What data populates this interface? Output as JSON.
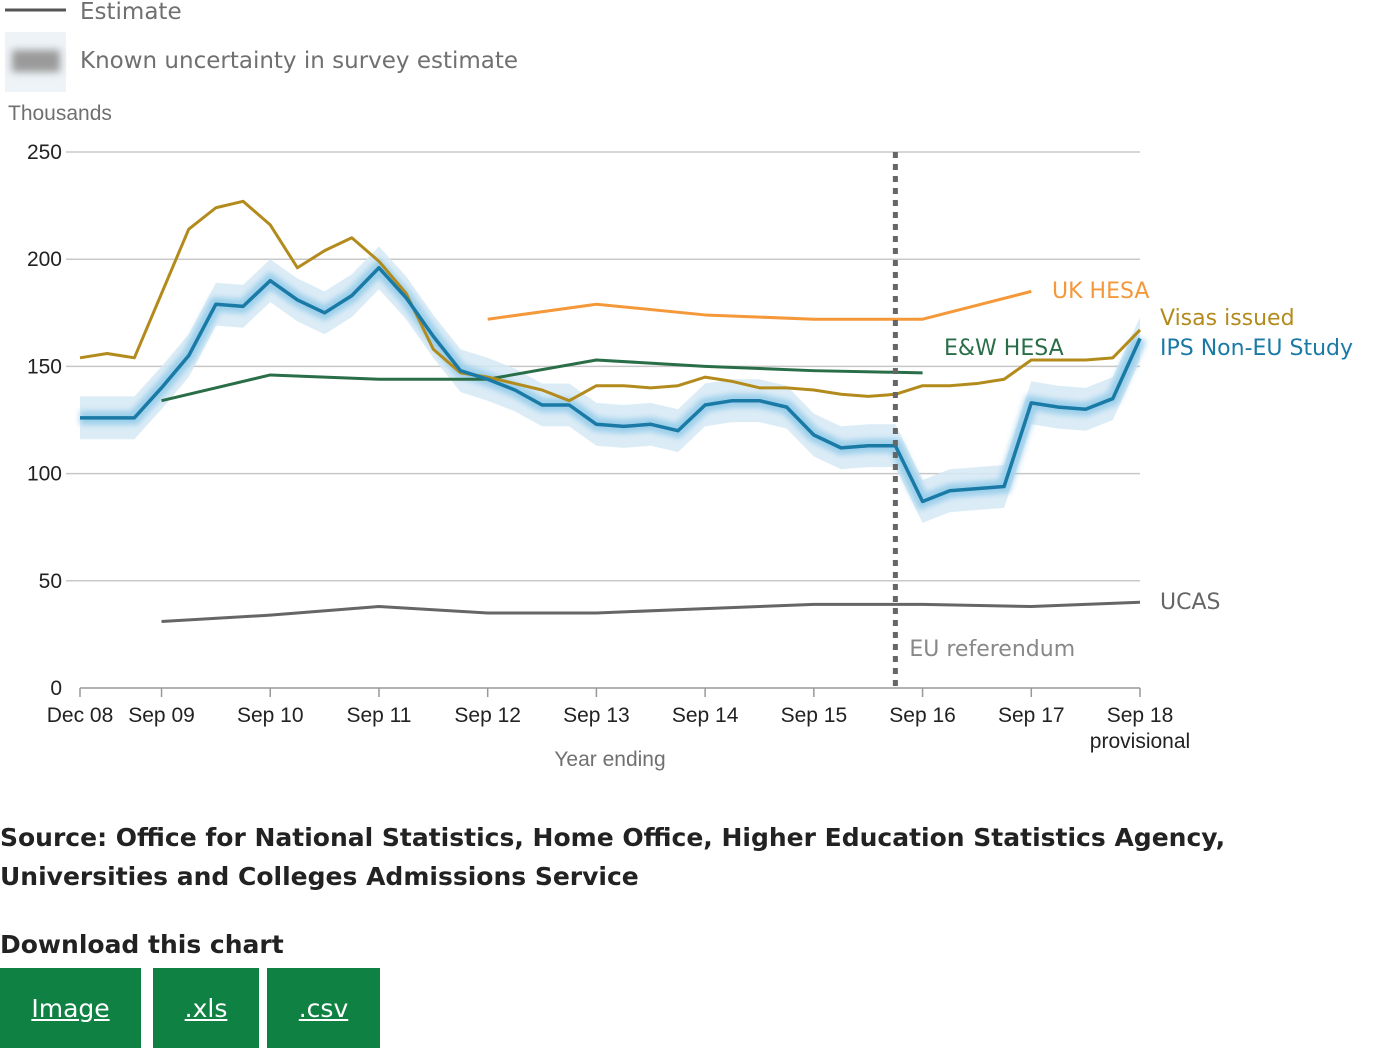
{
  "legend": {
    "estimate_label": "Estimate",
    "uncertainty_label": "Known uncertainty in survey estimate"
  },
  "source_text": "Source: Office for National Statistics, Home Office, Higher Education Statistics Agency, Universities and Colleges Admissions Service",
  "download": {
    "title": "Download this chart",
    "buttons": [
      "Image",
      ".xls",
      ".csv"
    ]
  },
  "colors": {
    "ips": "#1a7aa6",
    "visas": "#b38b1d",
    "uk_hesa": "#f5983a",
    "ew_hesa": "#2a6e48",
    "ucas": "#666666",
    "uncertainty": "#d6e9f5",
    "referendum": "#666666",
    "button": "#0f8243"
  },
  "chart_data": {
    "type": "line",
    "ylabel": "Thousands",
    "xlabel": "Year ending",
    "ylim": [
      0,
      250
    ],
    "yticks": [
      0,
      50,
      100,
      150,
      200,
      250
    ],
    "grid": true,
    "x_ticks": [
      {
        "x": 0,
        "label": "Dec 08",
        "sub": ""
      },
      {
        "x": 0.75,
        "label": "Sep 09",
        "sub": ""
      },
      {
        "x": 1.75,
        "label": "Sep 10",
        "sub": ""
      },
      {
        "x": 2.75,
        "label": "Sep 11",
        "sub": ""
      },
      {
        "x": 3.75,
        "label": "Sep 12",
        "sub": ""
      },
      {
        "x": 4.75,
        "label": "Sep 13",
        "sub": ""
      },
      {
        "x": 5.75,
        "label": "Sep 14",
        "sub": ""
      },
      {
        "x": 6.75,
        "label": "Sep 15",
        "sub": ""
      },
      {
        "x": 7.75,
        "label": "Sep 16",
        "sub": ""
      },
      {
        "x": 8.75,
        "label": "Sep 17",
        "sub": ""
      },
      {
        "x": 9.75,
        "label": "Sep 18",
        "sub": "provisional"
      }
    ],
    "xlim": [
      0,
      9.75
    ],
    "annotation": {
      "x": 7.5,
      "label": "EU referendum"
    },
    "series": [
      {
        "name": "IPS Non-EU Study",
        "key": "ips",
        "x": [
          0,
          0.25,
          0.5,
          0.75,
          1,
          1.25,
          1.5,
          1.75,
          2,
          2.25,
          2.5,
          2.75,
          3,
          3.25,
          3.5,
          3.75,
          4,
          4.25,
          4.5,
          4.75,
          5,
          5.25,
          5.5,
          5.75,
          6,
          6.25,
          6.5,
          6.75,
          7,
          7.25,
          7.5,
          7.75,
          8,
          8.25,
          8.5,
          8.75,
          9,
          9.25,
          9.5,
          9.75
        ],
        "y": [
          126,
          126,
          126,
          140,
          155,
          179,
          178,
          190,
          181,
          175,
          183,
          196,
          182,
          164,
          148,
          144,
          139,
          132,
          132,
          123,
          122,
          123,
          120,
          132,
          134,
          134,
          131,
          118,
          112,
          113,
          113,
          87,
          92,
          93,
          94,
          133,
          131,
          130,
          135,
          163
        ],
        "band": 10
      },
      {
        "name": "Visas issued",
        "key": "visas",
        "x": [
          0,
          0.25,
          0.5,
          0.75,
          1,
          1.25,
          1.5,
          1.75,
          2,
          2.25,
          2.5,
          2.75,
          3,
          3.25,
          3.5,
          3.75,
          4,
          4.25,
          4.5,
          4.75,
          5,
          5.25,
          5.5,
          5.75,
          6,
          6.25,
          6.5,
          6.75,
          7,
          7.25,
          7.5,
          7.75,
          8,
          8.25,
          8.5,
          8.75,
          9,
          9.25,
          9.5,
          9.75
        ],
        "y": [
          154,
          156,
          154,
          184,
          214,
          224,
          227,
          216,
          196,
          204,
          210,
          199,
          184,
          158,
          147,
          145,
          142,
          139,
          134,
          141,
          141,
          140,
          141,
          145,
          143,
          140,
          140,
          139,
          137,
          136,
          137,
          141,
          141,
          142,
          144,
          153,
          153,
          153,
          154,
          167
        ]
      },
      {
        "name": "UK HESA",
        "key": "uk_hesa",
        "x": [
          3.75,
          4.75,
          5.75,
          6.75,
          7.75,
          8.75
        ],
        "y": [
          172,
          179,
          174,
          172,
          172,
          185
        ]
      },
      {
        "name": "E&W HESA",
        "key": "ew_hesa",
        "x": [
          0.75,
          1.75,
          2.75,
          3.75,
          4.75,
          5.75,
          6.75,
          7.75
        ],
        "y": [
          134,
          146,
          144,
          144,
          153,
          150,
          148,
          147
        ]
      },
      {
        "name": "UCAS",
        "key": "ucas",
        "x": [
          0.75,
          1.75,
          2.75,
          3.75,
          4.75,
          5.75,
          6.75,
          7.75,
          8.75,
          9.75
        ],
        "y": [
          31,
          34,
          38,
          35,
          35,
          37,
          39,
          39,
          38,
          40
        ]
      }
    ]
  }
}
